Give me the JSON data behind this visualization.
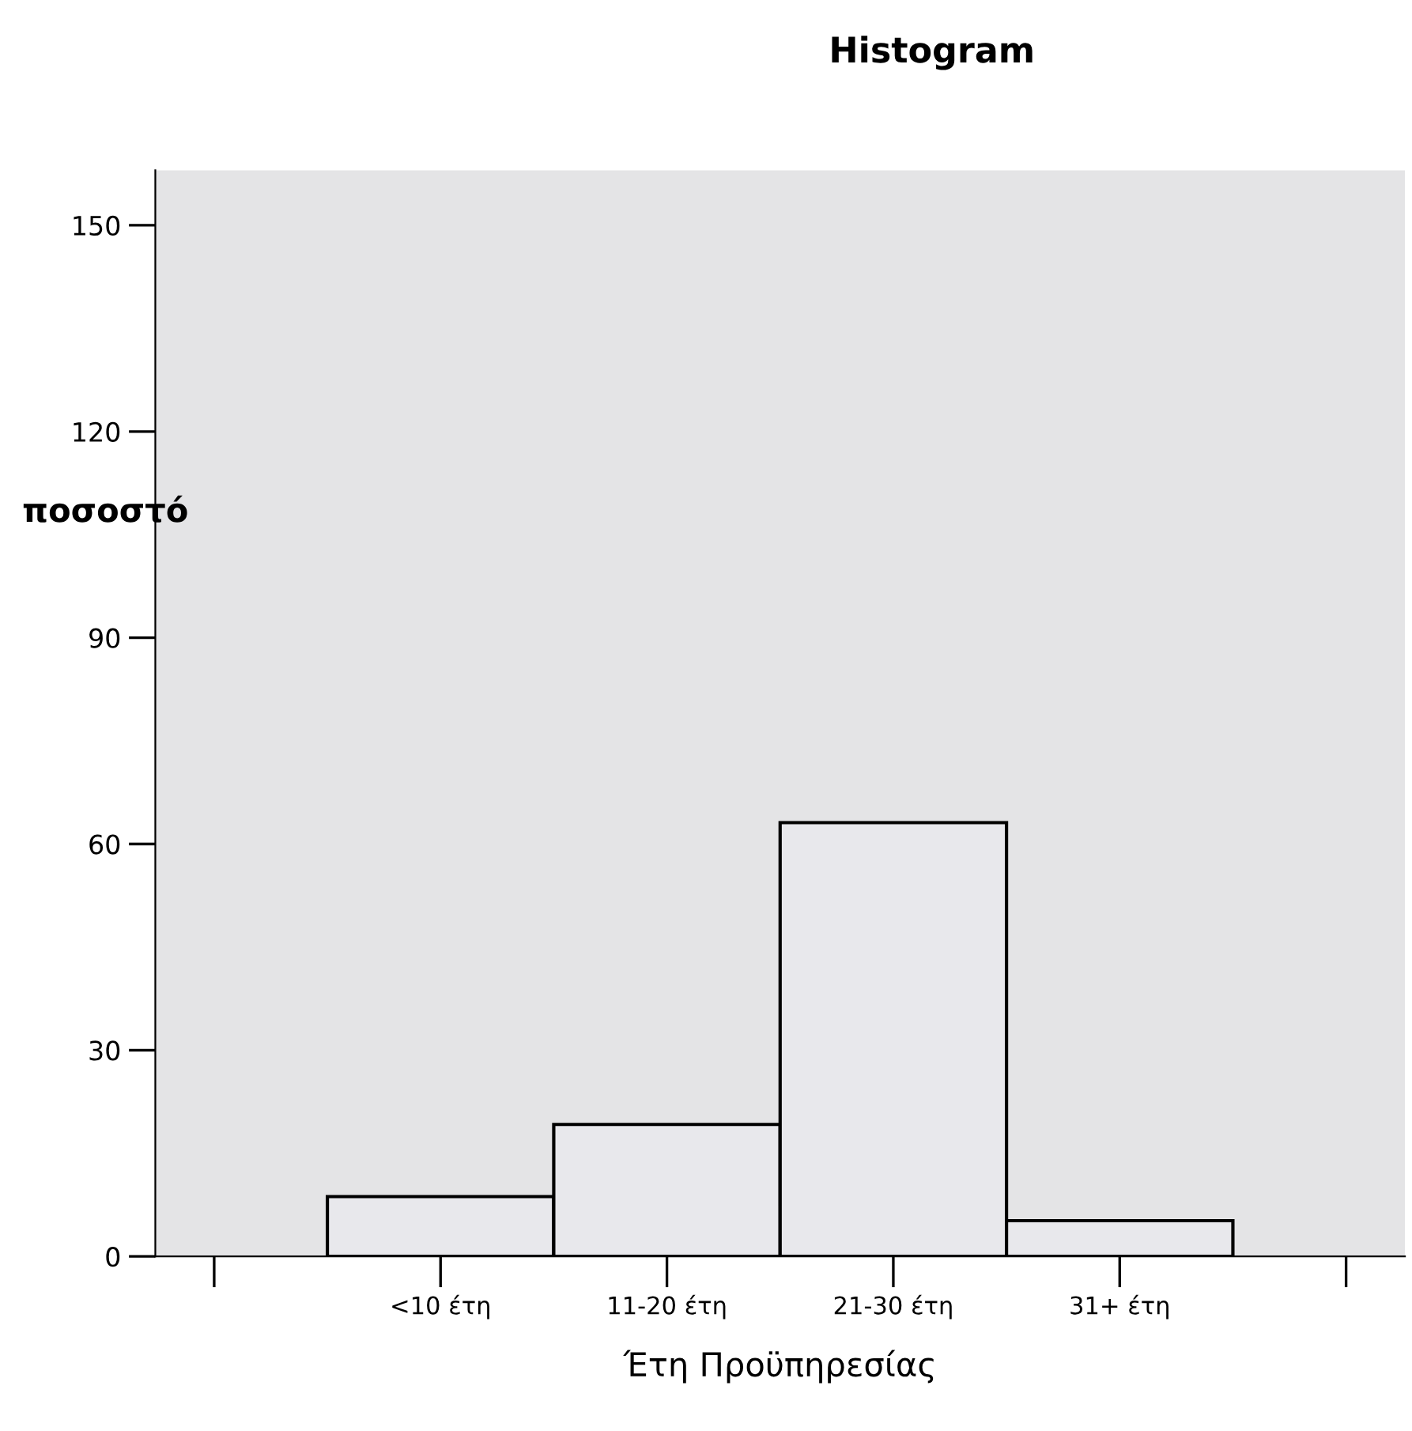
{
  "chart_data": {
    "type": "bar",
    "title": "Histogram",
    "xlabel": "Έτη Προϋπηρεσίας",
    "ylabel": "ποσοστό",
    "categories": [
      null,
      "<10 έτη",
      "11-20 έτη",
      "21-30 έτη",
      "31+ έτη",
      null
    ],
    "values": [
      null,
      8.7,
      19.2,
      63.1,
      5.2,
      null
    ],
    "color": "#e8e8ec",
    "ylim": [
      0,
      158
    ],
    "yticks": [
      0,
      30,
      60,
      90,
      120,
      150
    ],
    "grid": false
  }
}
